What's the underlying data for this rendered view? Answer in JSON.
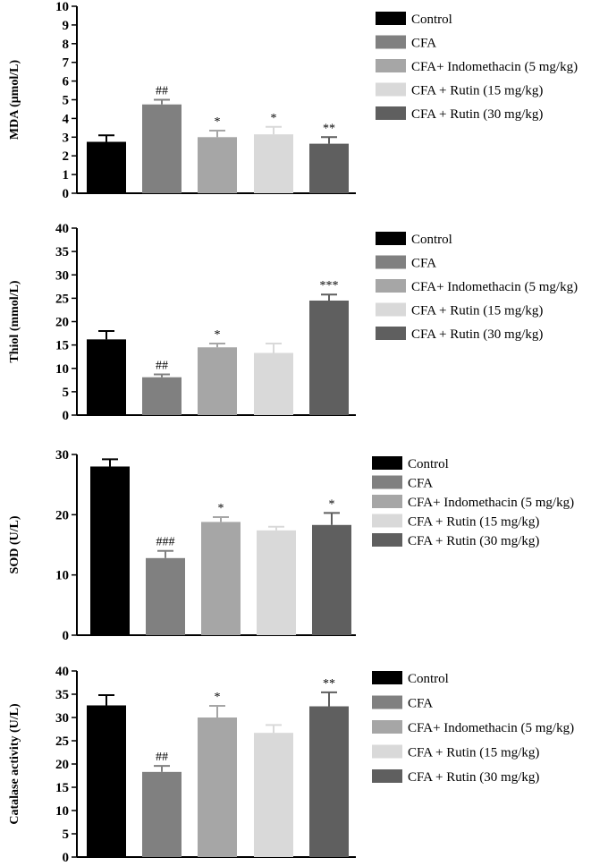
{
  "colors": [
    "#000000",
    "#808080",
    "#a6a6a6",
    "#d9d9d9",
    "#5f5f5f"
  ],
  "chart_data": [
    {
      "type": "bar",
      "ylabel": "MDA (μmol/L)",
      "ylim": [
        0,
        10
      ],
      "yticks": [
        0,
        1,
        2,
        3,
        4,
        5,
        6,
        7,
        8,
        9,
        10
      ],
      "categories": [
        "Control",
        "CFA",
        "CFA+ Indomethacin  (5 mg/kg)",
        "CFA + Rutin (15 mg/kg)",
        "CFA + Rutin (30 mg/kg)"
      ],
      "values": [
        2.75,
        4.75,
        3.0,
        3.15,
        2.65
      ],
      "errors": [
        0.35,
        0.25,
        0.35,
        0.4,
        0.35
      ],
      "annotations": [
        "",
        "##",
        "*",
        "*",
        "**"
      ],
      "legend": [
        "Control",
        "CFA",
        "CFA+ Indomethacin  (5 mg/kg)",
        "CFA + Rutin (15 mg/kg)",
        "CFA + Rutin (30 mg/kg)"
      ]
    },
    {
      "type": "bar",
      "ylabel": "Thiol (mmol/L)",
      "ylim": [
        0,
        40
      ],
      "yticks": [
        0,
        5,
        10,
        15,
        20,
        25,
        30,
        35,
        40
      ],
      "categories": [
        "Control",
        "CFA",
        "CFA+ Indomethacin  (5 mg/kg)",
        "CFA + Rutin (15 mg/kg)",
        "CFA + Rutin (30 mg/kg)"
      ],
      "values": [
        16.2,
        8.1,
        14.5,
        13.3,
        24.5
      ],
      "errors": [
        1.8,
        0.6,
        0.8,
        2.0,
        1.3
      ],
      "annotations": [
        "",
        "##",
        "*",
        "",
        "***"
      ],
      "legend": [
        "Control",
        "CFA",
        "CFA+ Indomethacin (5 mg/kg)",
        "CFA + Rutin (15 mg/kg)",
        "CFA + Rutin (30 mg/kg)"
      ]
    },
    {
      "type": "bar",
      "ylabel": "SOD (U/L)",
      "ylim": [
        0,
        30
      ],
      "yticks": [
        0,
        10,
        20,
        30
      ],
      "categories": [
        "Control",
        "CFA",
        "CFA+ Indomethacin  (5 mg/kg)",
        "CFA + Rutin (15 mg/kg)",
        "CFA + Rutin (30 mg/kg)"
      ],
      "values": [
        28.0,
        12.8,
        18.8,
        17.4,
        18.3
      ],
      "errors": [
        1.2,
        1.2,
        0.8,
        0.6,
        2.0
      ],
      "annotations": [
        "",
        "###",
        "*",
        "",
        "*"
      ],
      "legend": [
        "Control",
        "CFA",
        "CFA+ Indomethacin  (5 mg/kg)",
        "CFA + Rutin (15 mg/kg)",
        "CFA + Rutin (30 mg/kg)"
      ]
    },
    {
      "type": "bar",
      "ylabel": "Catalase activity (U/L)",
      "ylim": [
        0,
        40
      ],
      "yticks": [
        0,
        5,
        10,
        15,
        20,
        25,
        30,
        35,
        40
      ],
      "categories": [
        "Control",
        "CFA",
        "CFA+ Indomethacin  (5 mg/kg)",
        "CFA + Rutin (15 mg/kg)",
        "CFA + Rutin (30 mg/kg)"
      ],
      "values": [
        32.6,
        18.3,
        30.0,
        26.7,
        32.4
      ],
      "errors": [
        2.2,
        1.3,
        2.5,
        1.7,
        3.0
      ],
      "annotations": [
        "",
        "##",
        "*",
        "",
        "**"
      ],
      "legend": [
        "Control",
        "CFA",
        "CFA+ Indomethacin  (5 mg/kg)",
        "CFA + Rutin (15 mg/kg)",
        "CFA + Rutin (30 mg/kg)"
      ]
    }
  ]
}
